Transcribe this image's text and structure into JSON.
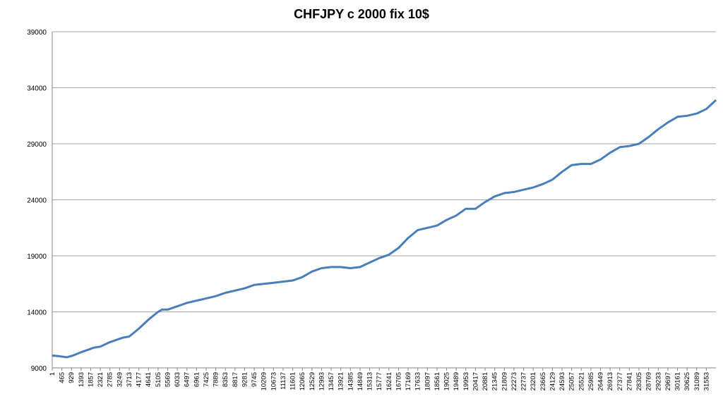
{
  "chart_data": {
    "type": "line",
    "title": "CHFJPY c 2000 fix 10$",
    "xlabel": "",
    "ylabel": "",
    "ylim": [
      9000,
      39000
    ],
    "yticks": [
      9000,
      14000,
      19000,
      24000,
      29000,
      34000,
      39000
    ],
    "xlim": [
      1,
      32017
    ],
    "xticks": [
      1,
      465,
      929,
      1393,
      1857,
      2321,
      2785,
      3249,
      3713,
      4177,
      4641,
      5105,
      5569,
      6033,
      6497,
      6961,
      7425,
      7889,
      8353,
      8817,
      9281,
      9745,
      10209,
      10673,
      11137,
      11601,
      12065,
      12529,
      12993,
      13457,
      13921,
      14385,
      14849,
      15313,
      15777,
      16241,
      16705,
      17169,
      17633,
      18097,
      18561,
      19025,
      19489,
      19953,
      20417,
      20881,
      21345,
      21809,
      22273,
      22737,
      23201,
      23665,
      24129,
      24593,
      25057,
      25521,
      25985,
      26449,
      26913,
      27377,
      27841,
      28305,
      28769,
      29233,
      29697,
      30161,
      30625,
      31089,
      31553
    ],
    "grid": true,
    "legend": "none",
    "series": [
      {
        "color": "#4a7ebb",
        "x": [
          1,
          300,
          700,
          1000,
          1393,
          1700,
          2000,
          2321,
          2785,
          3249,
          3400,
          3713,
          4177,
          4641,
          5105,
          5300,
          5569,
          6033,
          6497,
          6961,
          7425,
          7889,
          8353,
          8817,
          9281,
          9745,
          10209,
          10673,
          11137,
          11601,
          12065,
          12529,
          12993,
          13457,
          13921,
          14385,
          14849,
          15313,
          15777,
          16241,
          16705,
          17169,
          17633,
          18097,
          18561,
          19025,
          19489,
          19953,
          20417,
          20881,
          21345,
          21809,
          22273,
          22737,
          23201,
          23665,
          24129,
          24593,
          25057,
          25521,
          25985,
          26449,
          26913,
          27377,
          27841,
          28305,
          28769,
          29233,
          29697,
          30161,
          30625,
          31089,
          31553,
          32017
        ],
        "y": [
          10100,
          10050,
          9950,
          10100,
          10400,
          10600,
          10800,
          10900,
          11300,
          11600,
          11700,
          11800,
          12500,
          13300,
          14000,
          14200,
          14200,
          14500,
          14800,
          15000,
          15200,
          15400,
          15700,
          15900,
          16100,
          16400,
          16500,
          16600,
          16700,
          16800,
          17100,
          17600,
          17900,
          18000,
          18000,
          17900,
          18000,
          18400,
          18800,
          19100,
          19700,
          20600,
          21300,
          21500,
          21700,
          22200,
          22600,
          23200,
          23200,
          23800,
          24300,
          24600,
          24700,
          24900,
          25100,
          25400,
          25800,
          26500,
          27100,
          27200,
          27200,
          27600,
          28200,
          28700,
          28800,
          29000,
          29600,
          30300,
          30900,
          31400,
          31500,
          31700,
          32100,
          32900
        ]
      }
    ]
  }
}
